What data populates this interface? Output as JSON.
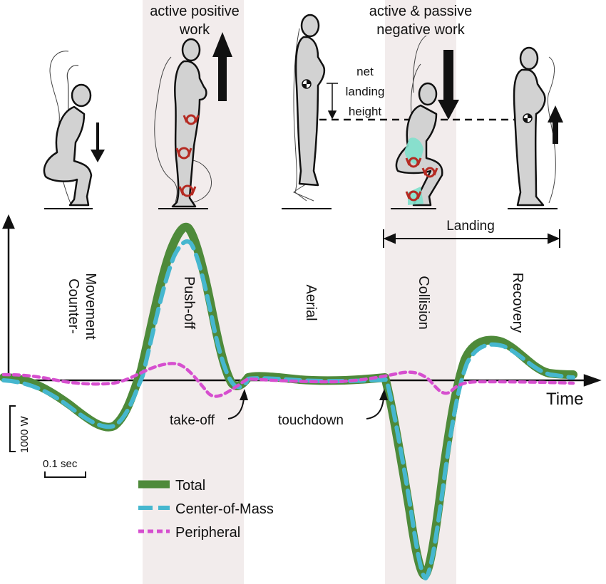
{
  "figure": {
    "top_labels": {
      "active_positive": [
        "active positive",
        "work"
      ],
      "active_passive": [
        "active & passive",
        "negative work"
      ],
      "net_landing": [
        "net",
        "landing",
        "height"
      ]
    },
    "phases": [
      {
        "id": "counter",
        "lines": [
          "Counter-",
          "Movement"
        ],
        "shaded": false
      },
      {
        "id": "pushoff",
        "lines": [
          "Push-off"
        ],
        "shaded": true
      },
      {
        "id": "aerial",
        "lines": [
          "Aerial"
        ],
        "shaded": false
      },
      {
        "id": "collision",
        "lines": [
          "Collision"
        ],
        "shaded": true
      },
      {
        "id": "recovery",
        "lines": [
          "Recovery"
        ],
        "shaded": false
      }
    ],
    "landing_label": "Landing",
    "time_label": "Time",
    "annotations": {
      "takeoff": "take-off",
      "touchdown": "touchdown"
    },
    "scale_bars": {
      "power": "1000 W",
      "time": "0.1 sec"
    },
    "legend": [
      {
        "name": "Total",
        "color": "#4e8a3a",
        "style": "solid"
      },
      {
        "name": "Center-of-Mass",
        "color": "#46b7cf",
        "style": "dashed"
      },
      {
        "name": "Peripheral",
        "color": "#d64fcf",
        "style": "dotted"
      }
    ],
    "colors": {
      "shade": "#f2ecec",
      "figure_fill": "#d2d2d2",
      "joint": "#b52a22",
      "muscle": "#7fe0cc"
    },
    "icons": [
      "arrow-down-icon",
      "arrow-up-icon",
      "com-marker-icon",
      "joint-icon"
    ]
  }
}
